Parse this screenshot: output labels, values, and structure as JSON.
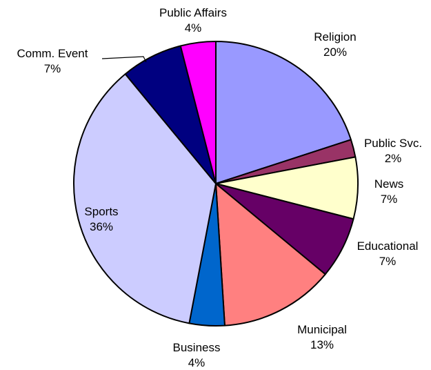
{
  "chart_data": {
    "type": "pie",
    "title": "",
    "slices": [
      {
        "label": "Religion",
        "pct_label": "20%",
        "value": 20,
        "color": "#9999FF"
      },
      {
        "label": "Public Svc.",
        "pct_label": "2%",
        "value": 2,
        "color": "#993366"
      },
      {
        "label": "News",
        "pct_label": "7%",
        "value": 7,
        "color": "#FFFFCC"
      },
      {
        "label": "Educational",
        "pct_label": "7%",
        "value": 7,
        "color": "#660066"
      },
      {
        "label": "Municipal",
        "pct_label": "13%",
        "value": 13,
        "color": "#FF8080"
      },
      {
        "label": "Business",
        "pct_label": "4%",
        "value": 4,
        "color": "#0066CC"
      },
      {
        "label": "Sports",
        "pct_label": "36%",
        "value": 36,
        "color": "#CCCCFF"
      },
      {
        "label": "Comm. Event",
        "pct_label": "7%",
        "value": 7,
        "color": "#000080"
      },
      {
        "label": "Public Affairs",
        "pct_label": "4%",
        "value": 4,
        "color": "#FF00FF"
      }
    ]
  }
}
